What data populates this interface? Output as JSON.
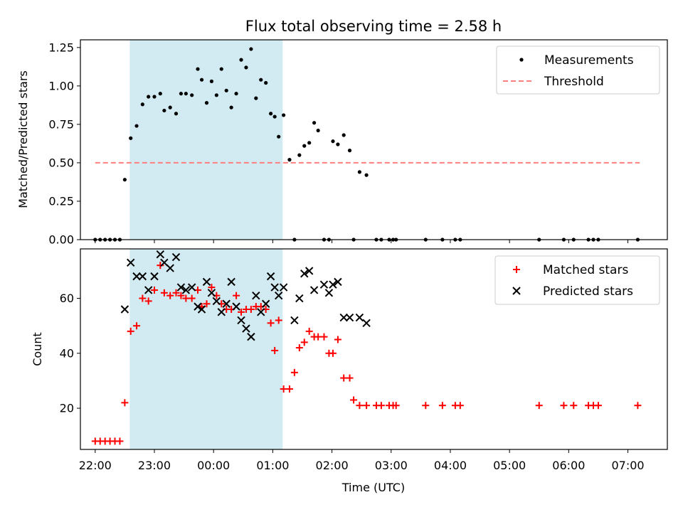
{
  "chart_data": [
    {
      "type": "scatter",
      "title": "Flux total observing time = 2.58 h",
      "xlabel": "",
      "ylabel": "Matched/Predicted stars",
      "x_unit": "time of day (UTC)",
      "xlim": [
        "21:45",
        "07:40"
      ],
      "ylim": [
        0,
        1.3
      ],
      "yticks": [
        0.0,
        0.25,
        0.5,
        0.75,
        1.0,
        1.25
      ],
      "ytick_labels": [
        "0.00",
        "0.25",
        "0.50",
        "0.75",
        "1.00",
        "1.25"
      ],
      "shaded_span": [
        "22:35",
        "01:10"
      ],
      "shade_color": "#add8e6",
      "legend_position": "top-right",
      "series": [
        {
          "name": "Measurements",
          "marker": "dot",
          "color": "#000000",
          "x": [
            "22:00",
            "22:05",
            "22:10",
            "22:15",
            "22:20",
            "22:25",
            "22:30",
            "22:36",
            "22:42",
            "22:48",
            "22:54",
            "23:00",
            "23:06",
            "23:10",
            "23:16",
            "23:22",
            "23:27",
            "23:32",
            "23:38",
            "23:44",
            "23:48",
            "23:53",
            "23:58",
            "24:03",
            "24:08",
            "24:13",
            "24:18",
            "24:23",
            "24:28",
            "24:33",
            "24:38",
            "24:43",
            "24:48",
            "24:53",
            "24:58",
            "25:02",
            "25:06",
            "25:11",
            "25:17",
            "25:22",
            "25:27",
            "25:32",
            "25:37",
            "25:42",
            "25:46",
            "25:52",
            "25:57",
            "26:01",
            "26:06",
            "26:12",
            "26:18",
            "26:22",
            "26:28",
            "26:35",
            "26:45",
            "26:50",
            "26:58",
            "27:02",
            "27:05",
            "27:35",
            "27:52",
            "28:05",
            "28:10",
            "29:30",
            "29:55",
            "30:05",
            "30:20",
            "30:25",
            "30:30",
            "31:10"
          ],
          "y": [
            0,
            0,
            0,
            0,
            0,
            0,
            0.39,
            0.66,
            0.74,
            0.88,
            0.93,
            0.93,
            0.95,
            0.84,
            0.86,
            0.82,
            0.95,
            0.95,
            0.94,
            1.11,
            1.04,
            0.89,
            1.03,
            0.94,
            1.11,
            0.97,
            0.86,
            0.95,
            1.17,
            1.12,
            1.24,
            0.92,
            1.04,
            1.02,
            0.82,
            0.8,
            0.67,
            0.81,
            0.52,
            0,
            0.55,
            0.61,
            0.63,
            0.76,
            0.71,
            0,
            0,
            0.64,
            0.62,
            0.68,
            0.58,
            0,
            0.44,
            0.42,
            0,
            0,
            0,
            0,
            0,
            0,
            0,
            0,
            0,
            0,
            0,
            0,
            0,
            0,
            0,
            0
          ]
        },
        {
          "name": "Threshold",
          "style": "dashed",
          "color": "#ff7f7f",
          "x": [
            "22:00",
            "31:12"
          ],
          "y": [
            0.5,
            0.5
          ]
        }
      ]
    },
    {
      "type": "scatter",
      "title": "",
      "xlabel": "Time (UTC)",
      "ylabel": "Count",
      "xlim": [
        "21:45",
        "07:40"
      ],
      "ylim": [
        5,
        78
      ],
      "yticks": [
        20,
        40,
        60
      ],
      "xticks": [
        "22:00",
        "23:00",
        "00:00",
        "01:00",
        "02:00",
        "03:00",
        "04:00",
        "05:00",
        "06:00",
        "07:00"
      ],
      "shaded_span": [
        "22:35",
        "01:10"
      ],
      "shade_color": "#add8e6",
      "legend_position": "top-right",
      "series": [
        {
          "name": "Matched stars",
          "marker": "plus",
          "color": "#ff0000",
          "x": [
            "22:00",
            "22:05",
            "22:10",
            "22:15",
            "22:20",
            "22:25",
            "22:30",
            "22:36",
            "22:42",
            "22:48",
            "22:54",
            "23:00",
            "23:06",
            "23:10",
            "23:16",
            "23:22",
            "23:27",
            "23:32",
            "23:38",
            "23:44",
            "23:48",
            "23:53",
            "23:58",
            "24:03",
            "24:08",
            "24:13",
            "24:18",
            "24:23",
            "24:28",
            "24:33",
            "24:38",
            "24:43",
            "24:48",
            "24:53",
            "24:58",
            "25:02",
            "25:06",
            "25:11",
            "25:17",
            "25:22",
            "25:27",
            "25:32",
            "25:37",
            "25:42",
            "25:46",
            "25:52",
            "25:57",
            "26:01",
            "26:06",
            "26:12",
            "26:18",
            "26:22",
            "26:28",
            "26:35",
            "26:45",
            "26:50",
            "26:58",
            "27:02",
            "27:05",
            "27:35",
            "27:52",
            "28:05",
            "28:10",
            "29:30",
            "29:55",
            "30:05",
            "30:20",
            "30:25",
            "30:30",
            "31:10"
          ],
          "y": [
            8,
            8,
            8,
            8,
            8,
            8,
            22,
            48,
            50,
            60,
            59,
            63,
            72,
            62,
            61,
            62,
            61,
            60,
            60,
            63,
            57,
            58,
            64,
            61,
            58,
            56,
            56,
            61,
            55,
            56,
            56,
            57,
            57,
            56,
            51,
            41,
            52,
            27,
            27,
            33,
            42,
            44,
            48,
            46,
            46,
            46,
            40,
            40,
            45,
            31,
            31,
            23,
            21,
            21,
            21,
            21,
            21,
            21,
            21,
            21,
            21,
            21,
            21,
            21,
            21,
            21,
            21,
            21,
            21,
            21
          ]
        },
        {
          "name": "Predicted stars",
          "marker": "x",
          "color": "#000000",
          "x": [
            "22:30",
            "22:36",
            "22:42",
            "22:48",
            "22:54",
            "23:00",
            "23:06",
            "23:10",
            "23:16",
            "23:22",
            "23:27",
            "23:32",
            "23:38",
            "23:44",
            "23:48",
            "23:53",
            "23:58",
            "24:03",
            "24:08",
            "24:13",
            "24:18",
            "24:23",
            "24:28",
            "24:33",
            "24:38",
            "24:43",
            "24:48",
            "24:53",
            "24:58",
            "25:02",
            "25:06",
            "25:11",
            "25:22",
            "25:27",
            "25:32",
            "25:37",
            "25:42",
            "25:52",
            "25:57",
            "26:01",
            "26:06",
            "26:12",
            "26:18",
            "26:28",
            "26:35"
          ],
          "y": [
            56,
            73,
            68,
            68,
            63,
            68,
            76,
            73,
            71,
            75,
            64,
            63,
            64,
            57,
            56,
            66,
            62,
            59,
            55,
            58,
            66,
            57,
            52,
            49,
            46,
            61,
            55,
            58,
            68,
            64,
            61,
            64,
            52,
            60,
            69,
            70,
            63,
            65,
            62,
            65,
            66,
            53,
            53,
            53,
            51
          ]
        }
      ]
    }
  ]
}
